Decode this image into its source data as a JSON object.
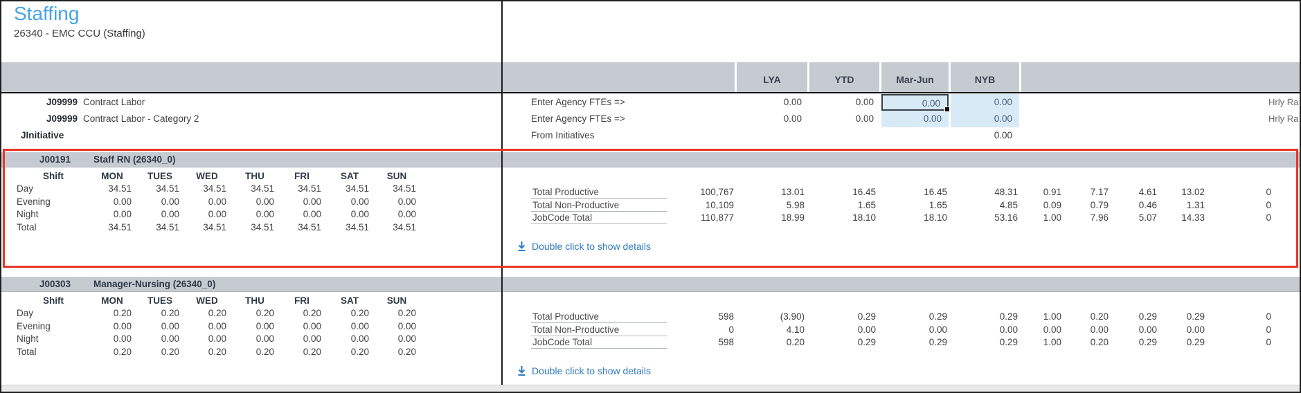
{
  "header": {
    "title": "Staffing",
    "subtitle": "26340 - EMC CCU (Staffing)"
  },
  "value_columns": [
    "LYA",
    "YTD",
    "Mar-Jun",
    "NYB"
  ],
  "agency_rows": [
    {
      "code": "J09999",
      "label": "Contract Labor",
      "action": "Enter Agency FTEs =>",
      "values": {
        "lya": "0.00",
        "ytd": "0.00",
        "mar_jun": "0.00",
        "nyb": "0.00"
      },
      "note": "Hrly Ra"
    },
    {
      "code": "J09999",
      "label": "Contract Labor - Category 2",
      "action": "Enter Agency FTEs =>",
      "values": {
        "lya": "0.00",
        "ytd": "0.00",
        "mar_jun": "0.00",
        "nyb": "0.00"
      },
      "note": "Hrly Ra"
    },
    {
      "code": "JInitiative",
      "label": "",
      "action": "From Initiatives",
      "values": {
        "nyb": "0.00"
      }
    }
  ],
  "shift_table": {
    "corner": "Shift",
    "days": [
      "MON",
      "TUES",
      "WED",
      "THU",
      "FRI",
      "SAT",
      "SUN"
    ]
  },
  "sections": [
    {
      "code": "J00191",
      "name": "Staff RN (26340_0)",
      "highlighted": true,
      "shifts": [
        {
          "label": "Day",
          "values": [
            "34.51",
            "34.51",
            "34.51",
            "34.51",
            "34.51",
            "34.51",
            "34.51"
          ]
        },
        {
          "label": "Evening",
          "values": [
            "0.00",
            "0.00",
            "0.00",
            "0.00",
            "0.00",
            "0.00",
            "0.00"
          ]
        },
        {
          "label": "Night",
          "values": [
            "0.00",
            "0.00",
            "0.00",
            "0.00",
            "0.00",
            "0.00",
            "0.00"
          ]
        },
        {
          "label": "Total",
          "values": [
            "34.51",
            "34.51",
            "34.51",
            "34.51",
            "34.51",
            "34.51",
            "34.51"
          ]
        }
      ],
      "totals": [
        {
          "label": "Total Productive",
          "values": [
            "100,767",
            "13.01",
            "16.45",
            "16.45",
            "48.31",
            "0.91",
            "7.17",
            "4.61",
            "13.02",
            "0"
          ]
        },
        {
          "label": "Total Non-Productive",
          "values": [
            "10,109",
            "5.98",
            "1.65",
            "1.65",
            "4.85",
            "0.09",
            "0.79",
            "0.46",
            "1.31",
            "0"
          ]
        },
        {
          "label": "JobCode Total",
          "values": [
            "110,877",
            "18.99",
            "18.10",
            "18.10",
            "53.16",
            "1.00",
            "7.96",
            "5.07",
            "14.33",
            "0"
          ]
        }
      ],
      "details_link": "Double click to show details"
    },
    {
      "code": "J00303",
      "name": "Manager-Nursing (26340_0)",
      "highlighted": false,
      "shifts": [
        {
          "label": "Day",
          "values": [
            "0.20",
            "0.20",
            "0.20",
            "0.20",
            "0.20",
            "0.20",
            "0.20"
          ]
        },
        {
          "label": "Evening",
          "values": [
            "0.00",
            "0.00",
            "0.00",
            "0.00",
            "0.00",
            "0.00",
            "0.00"
          ]
        },
        {
          "label": "Night",
          "values": [
            "0.00",
            "0.00",
            "0.00",
            "0.00",
            "0.00",
            "0.00",
            "0.00"
          ]
        },
        {
          "label": "Total",
          "values": [
            "0.20",
            "0.20",
            "0.20",
            "0.20",
            "0.20",
            "0.20",
            "0.20"
          ]
        }
      ],
      "totals": [
        {
          "label": "Total Productive",
          "values": [
            "598",
            "(3.90)",
            "0.29",
            "0.29",
            "0.29",
            "1.00",
            "0.20",
            "0.29",
            "0.29",
            "0"
          ]
        },
        {
          "label": "Total Non-Productive",
          "values": [
            "0",
            "4.10",
            "0.00",
            "0.00",
            "0.00",
            "0.00",
            "0.00",
            "0.00",
            "0.00",
            "0"
          ]
        },
        {
          "label": "JobCode Total",
          "values": [
            "598",
            "0.20",
            "0.29",
            "0.29",
            "0.29",
            "1.00",
            "0.20",
            "0.29",
            "0.29",
            "0"
          ]
        }
      ],
      "details_link": "Double click to show details"
    }
  ],
  "colors": {
    "accent_blue": "#45a3e8",
    "link_blue": "#2e7bbf",
    "band_gray": "#c5cbd1",
    "editable_cell_blue": "#d9eaf7",
    "highlight_red": "#ea3428"
  }
}
